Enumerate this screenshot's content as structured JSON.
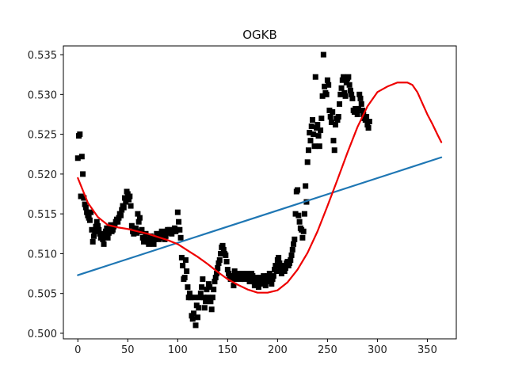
{
  "chart_data": {
    "type": "scatter",
    "title": "OGKB",
    "xlabel": "",
    "ylabel": "",
    "xlim": [
      -14.5,
      379
    ],
    "ylim": [
      0.4993,
      0.5361
    ],
    "xticks": [
      0,
      50,
      100,
      150,
      200,
      250,
      300,
      350
    ],
    "yticks": [
      0.5,
      0.505,
      0.51,
      0.515,
      0.52,
      0.525,
      0.53,
      0.535
    ],
    "grid": false,
    "legend": "none",
    "series": [
      {
        "kind": "scatter",
        "marker": "square",
        "color": "#000000",
        "points": [
          [
            0,
            0.522
          ],
          [
            1,
            0.5248
          ],
          [
            2,
            0.525
          ],
          [
            3,
            0.5172
          ],
          [
            4,
            0.5222
          ],
          [
            5,
            0.52
          ],
          [
            6,
            0.517
          ],
          [
            7,
            0.5162
          ],
          [
            8,
            0.5158
          ],
          [
            9,
            0.5152
          ],
          [
            10,
            0.5148
          ],
          [
            11,
            0.5145
          ],
          [
            12,
            0.5142
          ],
          [
            13,
            0.5152
          ],
          [
            14,
            0.513
          ],
          [
            15,
            0.5115
          ],
          [
            16,
            0.5122
          ],
          [
            17,
            0.5128
          ],
          [
            18,
            0.5134
          ],
          [
            19,
            0.514
          ],
          [
            20,
            0.5135
          ],
          [
            21,
            0.513
          ],
          [
            22,
            0.5125
          ],
          [
            23,
            0.512
          ],
          [
            24,
            0.5125
          ],
          [
            25,
            0.5118
          ],
          [
            26,
            0.5112
          ],
          [
            27,
            0.5122
          ],
          [
            28,
            0.5128
          ],
          [
            29,
            0.5132
          ],
          [
            30,
            0.512
          ],
          [
            31,
            0.5126
          ],
          [
            32,
            0.513
          ],
          [
            33,
            0.5136
          ],
          [
            34,
            0.5128
          ],
          [
            35,
            0.513
          ],
          [
            36,
            0.5134
          ],
          [
            37,
            0.5136
          ],
          [
            38,
            0.514
          ],
          [
            39,
            0.5143
          ],
          [
            40,
            0.514
          ],
          [
            41,
            0.5145
          ],
          [
            42,
            0.515
          ],
          [
            43,
            0.5148
          ],
          [
            44,
            0.5155
          ],
          [
            45,
            0.516
          ],
          [
            46,
            0.5158
          ],
          [
            47,
            0.517
          ],
          [
            48,
            0.5165
          ],
          [
            49,
            0.5178
          ],
          [
            50,
            0.5175
          ],
          [
            51,
            0.5168
          ],
          [
            52,
            0.5172
          ],
          [
            53,
            0.516
          ],
          [
            54,
            0.5135
          ],
          [
            55,
            0.5128
          ],
          [
            56,
            0.5125
          ],
          [
            57,
            0.513
          ],
          [
            58,
            0.5132
          ],
          [
            59,
            0.5126
          ],
          [
            60,
            0.515
          ],
          [
            61,
            0.514
          ],
          [
            62,
            0.5145
          ],
          [
            63,
            0.5128
          ],
          [
            64,
            0.513
          ],
          [
            65,
            0.512
          ],
          [
            66,
            0.5115
          ],
          [
            67,
            0.512
          ],
          [
            68,
            0.5125
          ],
          [
            69,
            0.5118
          ],
          [
            70,
            0.5115
          ],
          [
            71,
            0.5112
          ],
          [
            72,
            0.5118
          ],
          [
            73,
            0.5122
          ],
          [
            74,
            0.512
          ],
          [
            75,
            0.5115
          ],
          [
            76,
            0.5112
          ],
          [
            77,
            0.5118
          ],
          [
            78,
            0.512
          ],
          [
            79,
            0.5125
          ],
          [
            80,
            0.5122
          ],
          [
            81,
            0.5118
          ],
          [
            82,
            0.512
          ],
          [
            83,
            0.5125
          ],
          [
            84,
            0.5128
          ],
          [
            85,
            0.5126
          ],
          [
            86,
            0.5122
          ],
          [
            87,
            0.5118
          ],
          [
            88,
            0.5122
          ],
          [
            89,
            0.5128
          ],
          [
            90,
            0.513
          ],
          [
            91,
            0.5126
          ],
          [
            92,
            0.513
          ],
          [
            93,
            0.5128
          ],
          [
            94,
            0.5125
          ],
          [
            95,
            0.5128
          ],
          [
            96,
            0.513
          ],
          [
            97,
            0.5132
          ],
          [
            98,
            0.5128
          ],
          [
            99,
            0.513
          ],
          [
            100,
            0.5152
          ],
          [
            101,
            0.514
          ],
          [
            102,
            0.513
          ],
          [
            103,
            0.512
          ],
          [
            104,
            0.5095
          ],
          [
            105,
            0.5085
          ],
          [
            106,
            0.5068
          ],
          [
            107,
            0.507
          ],
          [
            108,
            0.5092
          ],
          [
            109,
            0.5078
          ],
          [
            110,
            0.5058
          ],
          [
            111,
            0.5045
          ],
          [
            112,
            0.505
          ],
          [
            113,
            0.5045
          ],
          [
            114,
            0.5022
          ],
          [
            115,
            0.5018
          ],
          [
            116,
            0.5025
          ],
          [
            117,
            0.5045
          ],
          [
            118,
            0.501
          ],
          [
            119,
            0.5035
          ],
          [
            120,
            0.502
          ],
          [
            121,
            0.5032
          ],
          [
            122,
            0.5045
          ],
          [
            123,
            0.505
          ],
          [
            124,
            0.5058
          ],
          [
            125,
            0.5068
          ],
          [
            126,
            0.5045
          ],
          [
            127,
            0.5032
          ],
          [
            128,
            0.504
          ],
          [
            129,
            0.5055
          ],
          [
            130,
            0.5045
          ],
          [
            131,
            0.5062
          ],
          [
            132,
            0.5058
          ],
          [
            133,
            0.504
          ],
          [
            134,
            0.503
          ],
          [
            135,
            0.5045
          ],
          [
            136,
            0.5055
          ],
          [
            137,
            0.5065
          ],
          [
            138,
            0.507
          ],
          [
            139,
            0.5075
          ],
          [
            140,
            0.5082
          ],
          [
            141,
            0.5088
          ],
          [
            142,
            0.5092
          ],
          [
            143,
            0.51
          ],
          [
            144,
            0.5108
          ],
          [
            145,
            0.511
          ],
          [
            146,
            0.5105
          ],
          [
            147,
            0.51
          ],
          [
            148,
            0.5098
          ],
          [
            149,
            0.509
          ],
          [
            150,
            0.508
          ],
          [
            151,
            0.5075
          ],
          [
            152,
            0.5072
          ],
          [
            153,
            0.5068
          ],
          [
            154,
            0.5072
          ],
          [
            155,
            0.507
          ],
          [
            156,
            0.506
          ],
          [
            157,
            0.5078
          ],
          [
            158,
            0.5068
          ],
          [
            159,
            0.5072
          ],
          [
            160,
            0.507
          ],
          [
            161,
            0.5075
          ],
          [
            162,
            0.507
          ],
          [
            163,
            0.5068
          ],
          [
            164,
            0.5072
          ],
          [
            165,
            0.5075
          ],
          [
            166,
            0.507
          ],
          [
            167,
            0.5068
          ],
          [
            168,
            0.5072
          ],
          [
            169,
            0.5075
          ],
          [
            170,
            0.507
          ],
          [
            171,
            0.5068
          ],
          [
            172,
            0.5065
          ],
          [
            173,
            0.507
          ],
          [
            174,
            0.5075
          ],
          [
            175,
            0.5072
          ],
          [
            176,
            0.5065
          ],
          [
            177,
            0.506
          ],
          [
            178,
            0.5068
          ],
          [
            179,
            0.507
          ],
          [
            180,
            0.5062
          ],
          [
            181,
            0.5058
          ],
          [
            182,
            0.5065
          ],
          [
            183,
            0.507
          ],
          [
            184,
            0.5062
          ],
          [
            185,
            0.5068
          ],
          [
            186,
            0.5072
          ],
          [
            187,
            0.5065
          ],
          [
            188,
            0.506
          ],
          [
            189,
            0.5068
          ],
          [
            190,
            0.5072
          ],
          [
            191,
            0.5065
          ],
          [
            192,
            0.5075
          ],
          [
            193,
            0.507
          ],
          [
            194,
            0.5062
          ],
          [
            195,
            0.5068
          ],
          [
            196,
            0.5072
          ],
          [
            197,
            0.508
          ],
          [
            198,
            0.5085
          ],
          [
            199,
            0.5078
          ],
          [
            200,
            0.5092
          ],
          [
            201,
            0.5095
          ],
          [
            202,
            0.5088
          ],
          [
            203,
            0.5082
          ],
          [
            204,
            0.5075
          ],
          [
            205,
            0.508
          ],
          [
            206,
            0.5085
          ],
          [
            207,
            0.5078
          ],
          [
            208,
            0.5082
          ],
          [
            209,
            0.5088
          ],
          [
            210,
            0.509
          ],
          [
            211,
            0.5085
          ],
          [
            212,
            0.5088
          ],
          [
            213,
            0.5092
          ],
          [
            214,
            0.5098
          ],
          [
            215,
            0.5105
          ],
          [
            216,
            0.5112
          ],
          [
            217,
            0.5118
          ],
          [
            218,
            0.515
          ],
          [
            219,
            0.5178
          ],
          [
            220,
            0.518
          ],
          [
            221,
            0.5148
          ],
          [
            222,
            0.514
          ],
          [
            223,
            0.5132
          ],
          [
            224,
            0.513
          ],
          [
            225,
            0.512
          ],
          [
            226,
            0.5128
          ],
          [
            227,
            0.515
          ],
          [
            228,
            0.5185
          ],
          [
            229,
            0.5165
          ],
          [
            230,
            0.5215
          ],
          [
            231,
            0.523
          ],
          [
            232,
            0.5252
          ],
          [
            233,
            0.5242
          ],
          [
            234,
            0.526
          ],
          [
            235,
            0.5268
          ],
          [
            236,
            0.525
          ],
          [
            237,
            0.5235
          ],
          [
            238,
            0.5322
          ],
          [
            239,
            0.5258
          ],
          [
            240,
            0.5262
          ],
          [
            241,
            0.5248
          ],
          [
            242,
            0.5235
          ],
          [
            243,
            0.5255
          ],
          [
            244,
            0.527
          ],
          [
            245,
            0.5298
          ],
          [
            246,
            0.535
          ],
          [
            247,
            0.531
          ],
          [
            248,
            0.5302
          ],
          [
            249,
            0.53
          ],
          [
            250,
            0.5318
          ],
          [
            251,
            0.5312
          ],
          [
            252,
            0.528
          ],
          [
            253,
            0.5272
          ],
          [
            254,
            0.5265
          ],
          [
            255,
            0.5278
          ],
          [
            256,
            0.5242
          ],
          [
            257,
            0.523
          ],
          [
            258,
            0.5262
          ],
          [
            259,
            0.527
          ],
          [
            260,
            0.5268
          ],
          [
            261,
            0.5272
          ],
          [
            262,
            0.5288
          ],
          [
            263,
            0.53
          ],
          [
            264,
            0.5308
          ],
          [
            265,
            0.5318
          ],
          [
            266,
            0.5322
          ],
          [
            267,
            0.5302
          ],
          [
            268,
            0.5298
          ],
          [
            269,
            0.5315
          ],
          [
            270,
            0.532
          ],
          [
            271,
            0.5322
          ],
          [
            272,
            0.5312
          ],
          [
            273,
            0.5305
          ],
          [
            274,
            0.53
          ],
          [
            275,
            0.5295
          ],
          [
            276,
            0.528
          ],
          [
            277,
            0.5278
          ],
          [
            278,
            0.5282
          ],
          [
            279,
            0.5278
          ],
          [
            280,
            0.5275
          ],
          [
            281,
            0.5282
          ],
          [
            282,
            0.53
          ],
          [
            283,
            0.5295
          ],
          [
            284,
            0.5288
          ],
          [
            285,
            0.528
          ],
          [
            286,
            0.5275
          ],
          [
            287,
            0.527
          ],
          [
            288,
            0.5268
          ],
          [
            289,
            0.5272
          ],
          [
            290,
            0.5262
          ],
          [
            291,
            0.5258
          ],
          [
            292,
            0.5266
          ]
        ]
      },
      {
        "kind": "line",
        "color": "#1f77b4",
        "width": 2.2,
        "x": [
          0,
          364
        ],
        "y": [
          0.5073,
          0.5221
        ]
      },
      {
        "kind": "line",
        "color": "#ee0000",
        "width": 2.2,
        "x": [
          0,
          10,
          20,
          30,
          40,
          50,
          60,
          70,
          80,
          90,
          100,
          110,
          120,
          130,
          140,
          150,
          160,
          170,
          180,
          190,
          200,
          210,
          220,
          230,
          240,
          250,
          260,
          270,
          280,
          290,
          300,
          310,
          320,
          330,
          335,
          340,
          345,
          350,
          355,
          360,
          364
        ],
        "y": [
          0.5195,
          0.5164,
          0.5146,
          0.5136,
          0.5133,
          0.5131,
          0.5128,
          0.5125,
          0.5121,
          0.5117,
          0.5112,
          0.5104,
          0.5096,
          0.5087,
          0.5077,
          0.5068,
          0.5061,
          0.5055,
          0.5051,
          0.5051,
          0.5054,
          0.5064,
          0.508,
          0.5101,
          0.5128,
          0.516,
          0.5193,
          0.5227,
          0.5259,
          0.5285,
          0.5303,
          0.531,
          0.5315,
          0.5315,
          0.5312,
          0.5303,
          0.5289,
          0.5275,
          0.5263,
          0.525,
          0.524
        ]
      }
    ]
  }
}
